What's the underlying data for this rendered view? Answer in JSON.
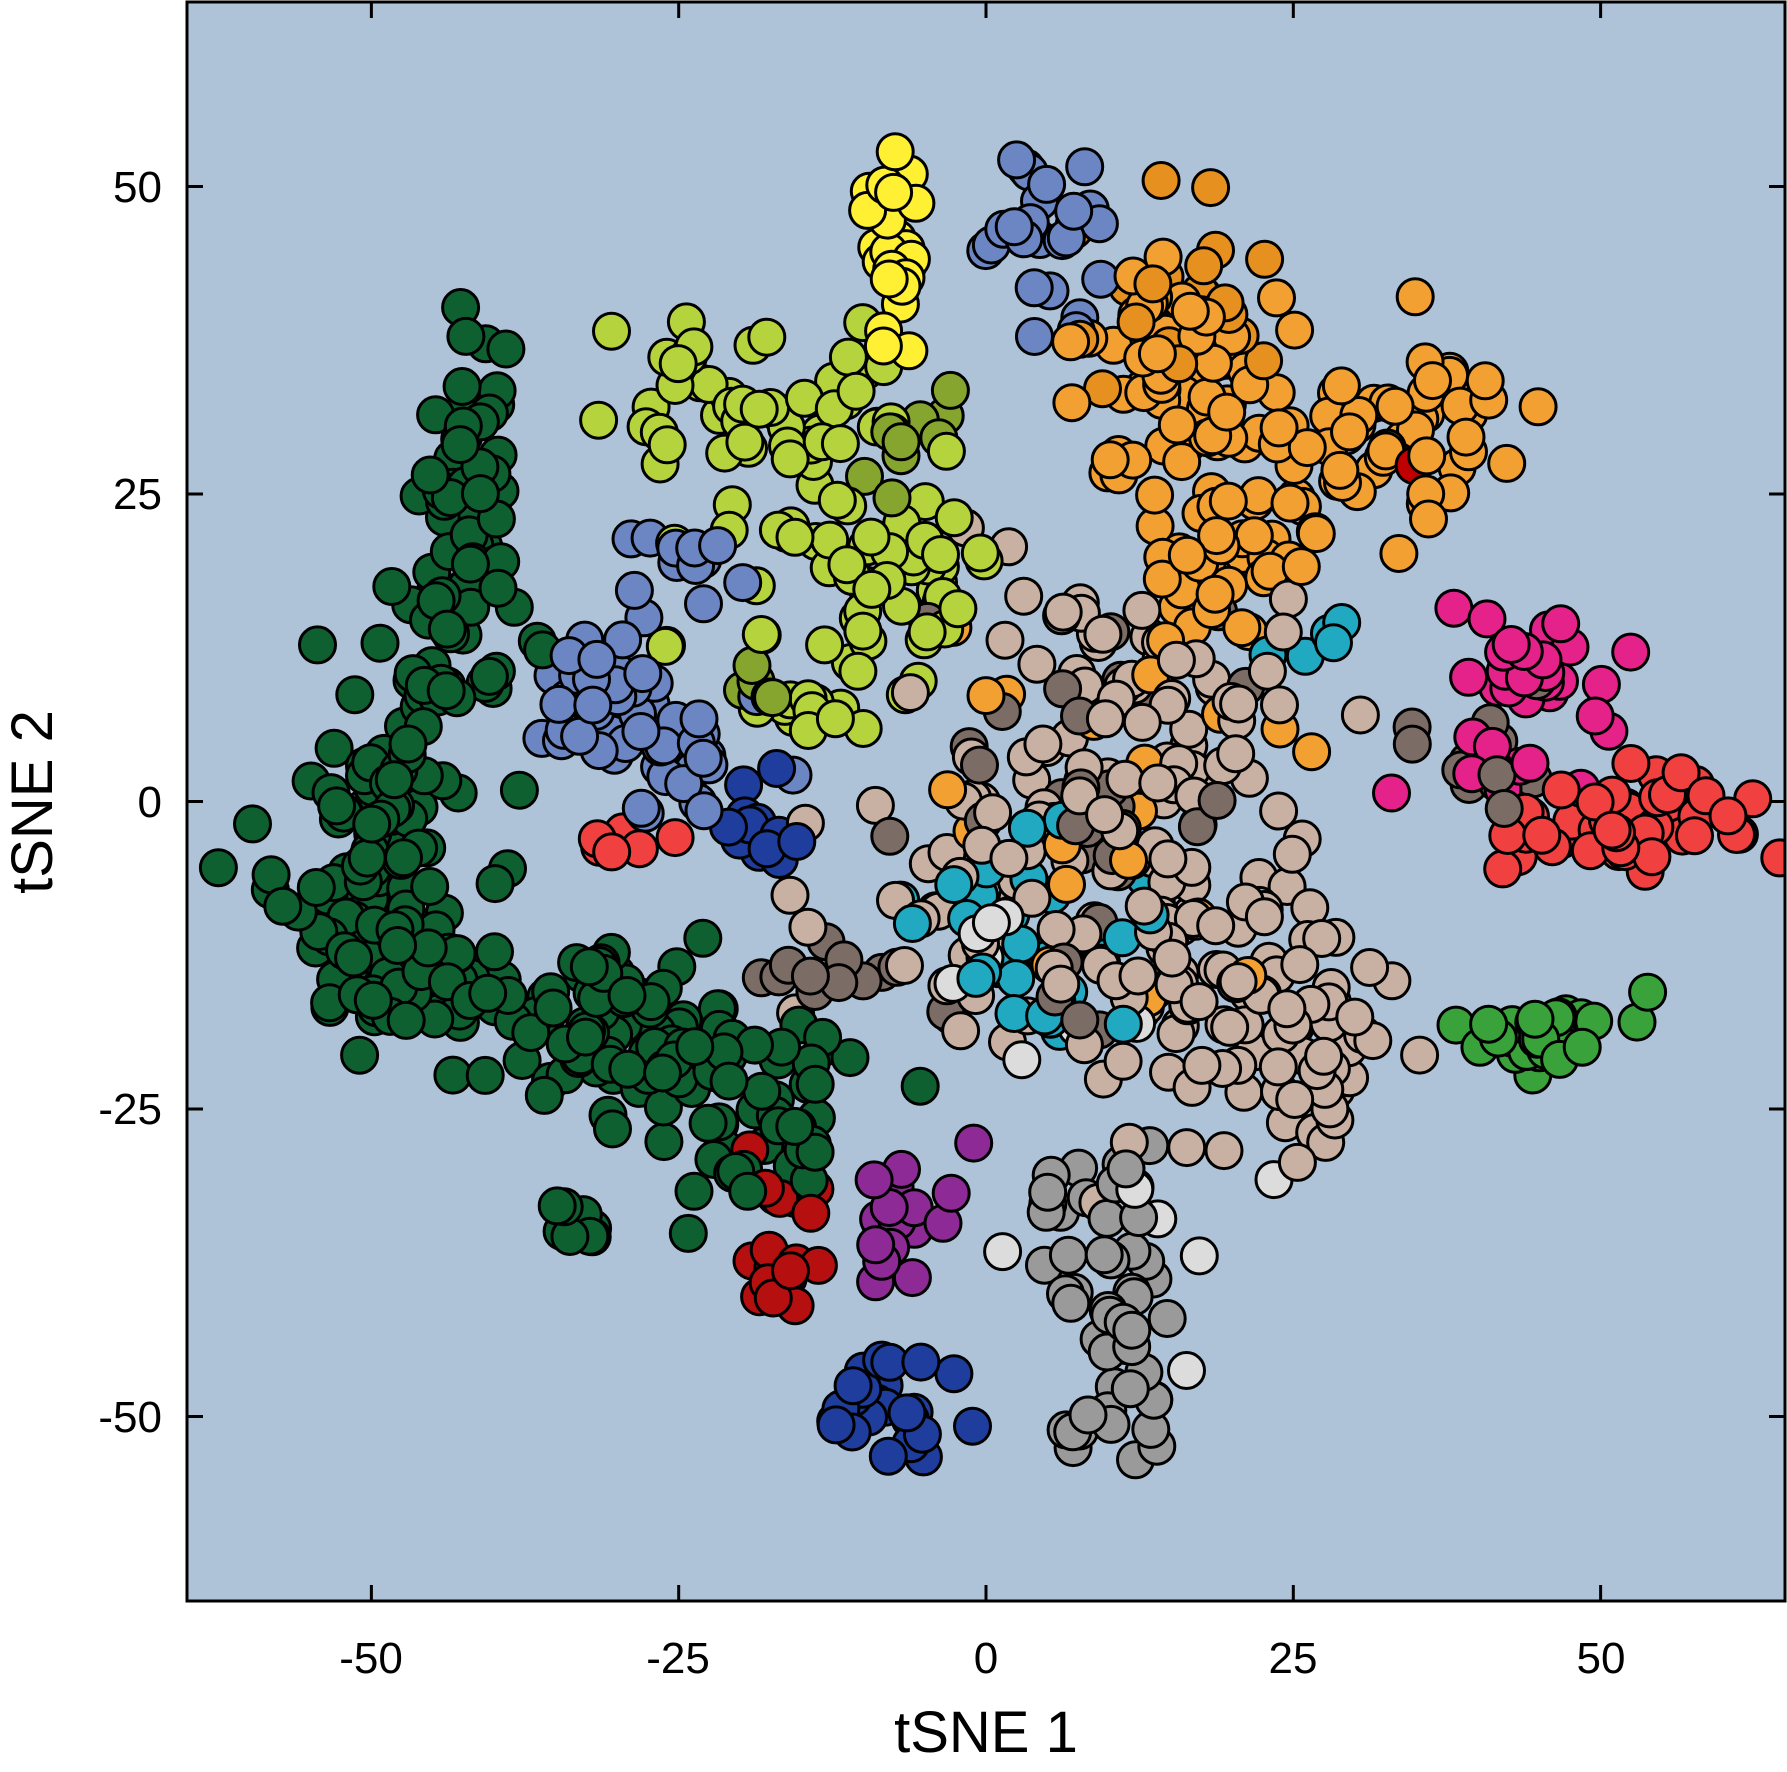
{
  "chart_data": {
    "type": "scatter",
    "title": "",
    "xlabel": "tSNE 1",
    "ylabel": "tSNE 2",
    "xlim": [
      -65,
      65
    ],
    "ylim": [
      -65,
      65
    ],
    "xticks": [
      -50,
      -25,
      0,
      25,
      50
    ],
    "yticks": [
      -50,
      -25,
      0,
      25,
      50
    ],
    "xtick_labels": [
      "-50",
      "-25",
      "0",
      "25",
      "50"
    ],
    "ytick_labels": [
      "-50",
      "-25",
      "0",
      "25",
      "50"
    ],
    "legend": "none",
    "grid": false,
    "colors": {
      "plot_background": "#aec3d8",
      "marker_edge": "#000000"
    },
    "series": [
      {
        "color": "#0e6030",
        "clusters": [
          {
            "x": -42,
            "y": 28,
            "sx": 2,
            "sy": 6,
            "n": 40
          },
          {
            "x": -44,
            "y": 12,
            "sx": 3,
            "sy": 5,
            "n": 40
          },
          {
            "x": -49,
            "y": 0,
            "sx": 3.5,
            "sy": 5,
            "n": 45
          },
          {
            "x": -52,
            "y": -10,
            "sx": 3,
            "sy": 4,
            "n": 40
          },
          {
            "x": -44,
            "y": -15,
            "sx": 4,
            "sy": 3,
            "n": 40
          },
          {
            "x": -34,
            "y": -16,
            "sx": 5,
            "sy": 3,
            "n": 40
          },
          {
            "x": -25,
            "y": -22,
            "sx": 6,
            "sy": 3,
            "n": 55
          },
          {
            "x": -20,
            "y": -28,
            "sx": 4,
            "sy": 2.5,
            "n": 25
          },
          {
            "x": -34,
            "y": -35,
            "sx": 2,
            "sy": 1,
            "n": 8
          }
        ]
      },
      {
        "color": "#b5d33c",
        "clusters": [
          {
            "x": -23,
            "y": 33,
            "sx": 4,
            "sy": 4,
            "n": 30
          },
          {
            "x": -13,
            "y": 27,
            "sx": 5,
            "sy": 5,
            "n": 35
          },
          {
            "x": -10,
            "y": 16,
            "sx": 4,
            "sy": 4,
            "n": 25
          },
          {
            "x": -4,
            "y": 19,
            "sx": 3,
            "sy": 3,
            "n": 15
          },
          {
            "x": -15,
            "y": 8,
            "sx": 3,
            "sy": 2,
            "n": 10
          }
        ]
      },
      {
        "color": "#86a52e",
        "clusters": [
          {
            "x": -8,
            "y": 30,
            "sx": 2,
            "sy": 3,
            "n": 10
          },
          {
            "x": -19,
            "y": 9,
            "sx": 1.5,
            "sy": 1.5,
            "n": 5
          }
        ]
      },
      {
        "color": "#fff033",
        "clusters": [
          {
            "x": -8,
            "y": 45,
            "sx": 1.5,
            "sy": 4,
            "n": 25
          }
        ]
      },
      {
        "color": "#6c86c3",
        "clusters": [
          {
            "x": -31,
            "y": 8,
            "sx": 3,
            "sy": 3,
            "n": 35
          },
          {
            "x": -24,
            "y": 3,
            "sx": 3,
            "sy": 3,
            "n": 20
          },
          {
            "x": 4,
            "y": 48,
            "sx": 2.5,
            "sy": 3.5,
            "n": 25
          },
          {
            "x": -25,
            "y": 20,
            "sx": 2.5,
            "sy": 1.5,
            "n": 12
          }
        ]
      },
      {
        "color": "#f3a033",
        "clusters": [
          {
            "x": 16,
            "y": 34,
            "sx": 5,
            "sy": 5,
            "n": 60
          },
          {
            "x": 30,
            "y": 29,
            "sx": 7,
            "sy": 3,
            "n": 45
          },
          {
            "x": 20,
            "y": 20,
            "sx": 6,
            "sy": 4,
            "n": 40
          },
          {
            "x": 10,
            "y": 0,
            "sx": 8,
            "sy": 8,
            "n": 25
          },
          {
            "x": 38,
            "y": 34,
            "sx": 2,
            "sy": 2,
            "n": 12
          }
        ]
      },
      {
        "color": "#e6901f",
        "clusters": [
          {
            "x": 14,
            "y": 40,
            "sx": 4,
            "sy": 4,
            "n": 25
          }
        ]
      },
      {
        "color": "#c8b0a2",
        "clusters": [
          {
            "x": 13,
            "y": 5,
            "sx": 7,
            "sy": 7,
            "n": 80
          },
          {
            "x": 18,
            "y": -15,
            "sx": 7,
            "sy": 6,
            "n": 80
          },
          {
            "x": 27,
            "y": -20,
            "sx": 4,
            "sy": 5,
            "n": 30
          },
          {
            "x": 2,
            "y": -8,
            "sx": 7,
            "sy": 7,
            "n": 40
          }
        ]
      },
      {
        "color": "#7b6c66",
        "clusters": [
          {
            "x": 8,
            "y": 2,
            "sx": 6,
            "sy": 8,
            "n": 35
          },
          {
            "x": 40,
            "y": 4,
            "sx": 2.5,
            "sy": 3,
            "n": 15
          },
          {
            "x": -12,
            "y": -14,
            "sx": 4,
            "sy": 2,
            "n": 12
          }
        ]
      },
      {
        "color": "#9a9a9a",
        "clusters": [
          {
            "x": 10,
            "y": -45,
            "sx": 2.5,
            "sy": 5,
            "n": 35
          },
          {
            "x": 8,
            "y": -33,
            "sx": 3,
            "sy": 3,
            "n": 15
          }
        ]
      },
      {
        "color": "#dcdcdc",
        "clusters": [
          {
            "x": 12,
            "y": -25,
            "sx": 8,
            "sy": 8,
            "n": 15
          }
        ]
      },
      {
        "color": "#21a9c2",
        "clusters": [
          {
            "x": 4,
            "y": -10,
            "sx": 6,
            "sy": 5,
            "n": 30
          },
          {
            "x": 26,
            "y": 12,
            "sx": 2,
            "sy": 2,
            "n": 5
          }
        ]
      },
      {
        "color": "#e5218a",
        "clusters": [
          {
            "x": 44,
            "y": 10,
            "sx": 4,
            "sy": 2,
            "n": 25
          },
          {
            "x": 42,
            "y": 3,
            "sx": 3,
            "sy": 2,
            "n": 10
          }
        ]
      },
      {
        "color": "#f04040",
        "clusters": [
          {
            "x": 52,
            "y": -2,
            "sx": 4.5,
            "sy": 2.5,
            "n": 45
          },
          {
            "x": -30,
            "y": -3,
            "sx": 1.5,
            "sy": 1,
            "n": 6
          }
        ]
      },
      {
        "color": "#3aa23a",
        "clusters": [
          {
            "x": 45,
            "y": -19,
            "sx": 4,
            "sy": 2,
            "n": 30
          }
        ]
      },
      {
        "color": "#b50f0f",
        "clusters": [
          {
            "x": -17,
            "y": -36,
            "sx": 1.5,
            "sy": 4,
            "n": 20
          }
        ]
      },
      {
        "color": "#8e2a95",
        "clusters": [
          {
            "x": -5,
            "y": -33,
            "sx": 2.5,
            "sy": 3,
            "n": 18
          }
        ]
      },
      {
        "color": "#1e3d9c",
        "clusters": [
          {
            "x": -7,
            "y": -50,
            "sx": 3,
            "sy": 2.5,
            "n": 25
          },
          {
            "x": -19,
            "y": -3,
            "sx": 2,
            "sy": 2,
            "n": 12
          }
        ]
      },
      {
        "color": "#c00000",
        "clusters": [
          {
            "x": 35,
            "y": 27,
            "sx": 0.5,
            "sy": 0.5,
            "n": 1
          }
        ]
      }
    ]
  }
}
